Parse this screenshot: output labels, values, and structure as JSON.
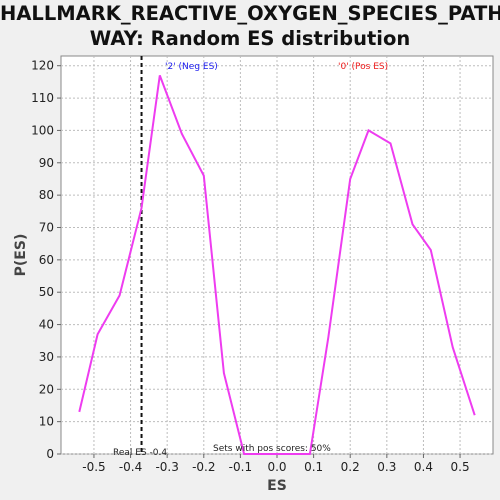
{
  "chart_data": {
    "type": "line",
    "title_line1": "HALLMARK_REACTIVE_OXYGEN_SPECIES_PATH",
    "title_line2": "WAY: Random ES distribution",
    "xlabel": "ES",
    "ylabel": "P(ES)",
    "xlim": [
      -0.59,
      0.59
    ],
    "ylim": [
      0,
      123
    ],
    "x_ticks": [
      "-0.5",
      "-0.4",
      "-0.3",
      "-0.2",
      "-0.1",
      "0.0",
      "0.1",
      "0.2",
      "0.3",
      "0.4",
      "0.5"
    ],
    "y_ticks": [
      "0",
      "10",
      "20",
      "30",
      "40",
      "50",
      "60",
      "70",
      "80",
      "90",
      "100",
      "110",
      "120"
    ],
    "grid": true,
    "series": [
      {
        "color": "#ee3cf0",
        "x": [
          -0.54,
          -0.49,
          -0.43,
          -0.37,
          -0.32,
          -0.26,
          -0.2,
          -0.145,
          -0.09,
          -0.03,
          0.03,
          0.09,
          0.14,
          0.2,
          0.25,
          0.31,
          0.37,
          0.42,
          0.48,
          0.54
        ],
        "y": [
          13,
          37,
          49,
          76,
          117,
          99,
          86,
          25,
          0,
          0,
          0,
          0,
          36,
          85,
          100,
          96,
          71,
          63,
          33,
          12
        ]
      }
    ],
    "real_es": -0.37,
    "annotations": {
      "neg_label": "'2' (Neg ES)",
      "pos_label": "'0' (Pos ES)",
      "real_es_label": "Real ES -0.4",
      "sets_label": "Sets with pos scores: 50%",
      "neg_color": "#1a1aee",
      "pos_color": "#ee1a1a"
    }
  }
}
